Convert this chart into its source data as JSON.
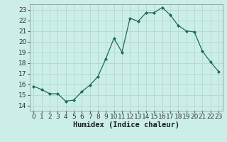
{
  "x": [
    0,
    1,
    2,
    3,
    4,
    5,
    6,
    7,
    8,
    9,
    10,
    11,
    12,
    13,
    14,
    15,
    16,
    17,
    18,
    19,
    20,
    21,
    22,
    23
  ],
  "y": [
    15.8,
    15.5,
    15.1,
    15.1,
    14.4,
    14.5,
    15.3,
    15.9,
    16.7,
    18.4,
    20.3,
    19.0,
    22.2,
    21.9,
    22.7,
    22.7,
    23.2,
    22.5,
    21.5,
    21.0,
    20.9,
    19.1,
    18.1,
    17.2
  ],
  "xlabel": "Humidex (Indice chaleur)",
  "ylim": [
    13.5,
    23.5
  ],
  "xlim": [
    -0.5,
    23.5
  ],
  "yticks": [
    14,
    15,
    16,
    17,
    18,
    19,
    20,
    21,
    22,
    23
  ],
  "xticks": [
    0,
    1,
    2,
    3,
    4,
    5,
    6,
    7,
    8,
    9,
    10,
    11,
    12,
    13,
    14,
    15,
    16,
    17,
    18,
    19,
    20,
    21,
    22,
    23
  ],
  "line_color": "#1a6b5a",
  "marker": "D",
  "marker_size": 2.0,
  "bg_color": "#cceee8",
  "grid_color": "#b0d8d2",
  "tick_fontsize": 6.5,
  "xlabel_fontsize": 7.5
}
